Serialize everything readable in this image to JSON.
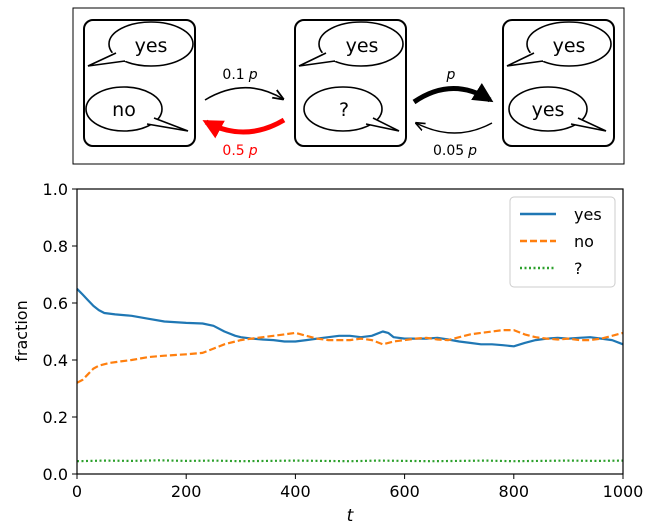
{
  "diagram": {
    "states": [
      {
        "id": "left",
        "top_bubble": "yes",
        "bottom_bubble": "no"
      },
      {
        "id": "middle",
        "top_bubble": "yes",
        "bottom_bubble": "?"
      },
      {
        "id": "right",
        "top_bubble": "yes",
        "bottom_bubble": "yes"
      }
    ],
    "arrows": {
      "left_to_middle": {
        "coeff": "0.1",
        "var": "p",
        "color": "#000000"
      },
      "middle_to_left": {
        "coeff": "0.5",
        "var": "p",
        "color": "#ff0000"
      },
      "middle_to_right": {
        "coeff": "",
        "var": "p",
        "color": "#000000"
      },
      "right_to_middle": {
        "coeff": "0.05",
        "var": "p",
        "color": "#000000"
      }
    }
  },
  "chart_data": {
    "type": "line",
    "xlabel": "t",
    "ylabel": "fraction",
    "xlim": [
      0,
      1000
    ],
    "ylim": [
      0,
      1.0
    ],
    "xticks": [
      0,
      200,
      400,
      600,
      800,
      1000
    ],
    "yticks": [
      0.0,
      0.2,
      0.4,
      0.6,
      0.8,
      1.0
    ],
    "yticklabels": [
      "0.0",
      "0.2",
      "0.4",
      "0.6",
      "0.8",
      "1.0"
    ],
    "legend_position": "top-right",
    "grid": false,
    "series": [
      {
        "name": "yes",
        "color": "#1f77b4",
        "style": "solid",
        "x": [
          0,
          10,
          20,
          30,
          40,
          50,
          70,
          100,
          130,
          160,
          200,
          230,
          250,
          270,
          290,
          300,
          320,
          340,
          360,
          380,
          400,
          420,
          440,
          460,
          480,
          500,
          520,
          540,
          560,
          570,
          580,
          600,
          620,
          640,
          660,
          680,
          700,
          720,
          740,
          760,
          780,
          800,
          820,
          840,
          860,
          880,
          900,
          920,
          940,
          960,
          980,
          1000
        ],
        "y": [
          0.65,
          0.63,
          0.61,
          0.59,
          0.575,
          0.565,
          0.56,
          0.555,
          0.545,
          0.535,
          0.53,
          0.528,
          0.52,
          0.5,
          0.485,
          0.48,
          0.475,
          0.472,
          0.47,
          0.465,
          0.465,
          0.47,
          0.475,
          0.48,
          0.485,
          0.485,
          0.48,
          0.485,
          0.5,
          0.495,
          0.48,
          0.475,
          0.475,
          0.475,
          0.478,
          0.472,
          0.465,
          0.46,
          0.455,
          0.455,
          0.452,
          0.448,
          0.46,
          0.47,
          0.475,
          0.478,
          0.475,
          0.478,
          0.48,
          0.475,
          0.47,
          0.455
        ]
      },
      {
        "name": "no",
        "color": "#ff7f0e",
        "style": "dashed",
        "x": [
          0,
          10,
          20,
          30,
          40,
          60,
          80,
          100,
          130,
          160,
          200,
          230,
          250,
          270,
          290,
          300,
          320,
          340,
          360,
          380,
          400,
          420,
          440,
          460,
          480,
          500,
          520,
          540,
          560,
          570,
          580,
          600,
          620,
          640,
          660,
          680,
          700,
          720,
          740,
          760,
          780,
          800,
          820,
          840,
          860,
          880,
          900,
          920,
          940,
          960,
          980,
          1000
        ],
        "y": [
          0.32,
          0.33,
          0.35,
          0.37,
          0.38,
          0.39,
          0.395,
          0.4,
          0.41,
          0.415,
          0.42,
          0.425,
          0.44,
          0.455,
          0.465,
          0.47,
          0.475,
          0.48,
          0.485,
          0.49,
          0.495,
          0.485,
          0.475,
          0.47,
          0.47,
          0.47,
          0.475,
          0.47,
          0.455,
          0.46,
          0.465,
          0.47,
          0.475,
          0.478,
          0.472,
          0.47,
          0.48,
          0.49,
          0.495,
          0.5,
          0.505,
          0.505,
          0.49,
          0.48,
          0.475,
          0.472,
          0.475,
          0.47,
          0.47,
          0.475,
          0.485,
          0.495
        ]
      },
      {
        "name": "?",
        "color": "#2ca02c",
        "style": "dotted",
        "x": [
          0,
          50,
          100,
          150,
          200,
          250,
          300,
          350,
          400,
          450,
          500,
          550,
          600,
          650,
          700,
          750,
          800,
          850,
          900,
          950,
          1000
        ],
        "y": [
          0.045,
          0.047,
          0.046,
          0.048,
          0.046,
          0.047,
          0.045,
          0.046,
          0.047,
          0.046,
          0.045,
          0.047,
          0.046,
          0.045,
          0.046,
          0.047,
          0.045,
          0.046,
          0.047,
          0.046,
          0.047
        ]
      }
    ]
  }
}
